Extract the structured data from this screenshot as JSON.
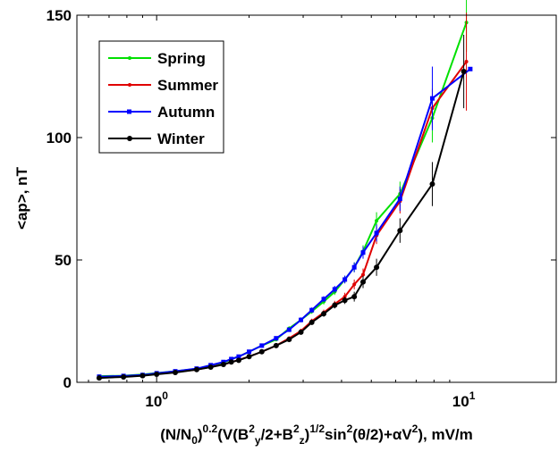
{
  "chart_data": {
    "type": "line",
    "xscale": "log",
    "xlim": [
      0.55,
      20
    ],
    "ylim": [
      0,
      150
    ],
    "x_ticks": [
      1,
      10
    ],
    "x_tick_labels": [
      {
        "base": "10",
        "exp": "0"
      },
      {
        "base": "10",
        "exp": "1"
      }
    ],
    "y_ticks": [
      0,
      50,
      100,
      150
    ],
    "y_tick_labels": [
      "0",
      "50",
      "100",
      "150"
    ],
    "ylabel": "<ap>, nT",
    "xlabel_parts": [
      {
        "t": "(N/N",
        "s": "n"
      },
      {
        "t": "0",
        "s": "sub"
      },
      {
        "t": ")",
        "s": "n"
      },
      {
        "t": "0.2",
        "s": "sup"
      },
      {
        "t": "(V(B",
        "s": "n"
      },
      {
        "t": "2",
        "s": "sup"
      },
      {
        "t": "y",
        "s": "sub"
      },
      {
        "t": "/2+B",
        "s": "n"
      },
      {
        "t": "2",
        "s": "sup"
      },
      {
        "t": "z",
        "s": "sub"
      },
      {
        "t": ")",
        "s": "n"
      },
      {
        "t": "1/2",
        "s": "sup"
      },
      {
        "t": "sin",
        "s": "n"
      },
      {
        "t": "2",
        "s": "sup"
      },
      {
        "t": "(θ/2)+αV",
        "s": "n"
      },
      {
        "t": "2",
        "s": "sup"
      },
      {
        "t": "), mV/m",
        "s": "n"
      }
    ],
    "grid": false,
    "legend_position": "top-left",
    "series": [
      {
        "name": "Spring",
        "color": "#00e000",
        "marker": "dot",
        "x": [
          0.65,
          0.78,
          0.9,
          1.0,
          1.15,
          1.35,
          1.5,
          1.65,
          1.75,
          1.85,
          2.0,
          2.2,
          2.45,
          2.7,
          2.95,
          3.2,
          3.5,
          3.8,
          4.1,
          4.4,
          4.7,
          5.2,
          6.2,
          7.9,
          10.2
        ],
        "y": [
          2.5,
          2.7,
          3.2,
          3.8,
          4.5,
          5.5,
          7.0,
          8.0,
          9.5,
          10.5,
          12.5,
          15.0,
          17.5,
          22.0,
          25.5,
          29.0,
          33.0,
          37.0,
          42.0,
          47.0,
          53.5,
          66.0,
          77.0,
          108.0,
          147.0
        ],
        "err": [
          0.3,
          0.3,
          0.3,
          0.4,
          0.4,
          0.5,
          0.5,
          0.5,
          0.5,
          0.6,
          0.6,
          0.7,
          0.8,
          0.9,
          1.0,
          1.0,
          1.2,
          1.3,
          1.5,
          2.0,
          2.5,
          3.5,
          5.0,
          10.0,
          12.0
        ]
      },
      {
        "name": "Summer",
        "color": "#e00000",
        "marker": "dot",
        "x": [
          0.65,
          0.78,
          0.9,
          1.0,
          1.15,
          1.35,
          1.5,
          1.65,
          1.75,
          1.85,
          2.0,
          2.2,
          2.45,
          2.7,
          2.95,
          3.2,
          3.5,
          3.8,
          4.1,
          4.4,
          4.7,
          5.2,
          6.2,
          7.9,
          10.2
        ],
        "y": [
          2.0,
          2.3,
          2.8,
          3.5,
          4.2,
          5.2,
          6.3,
          7.3,
          8.2,
          9.2,
          10.5,
          12.5,
          15.0,
          18.0,
          21.0,
          25.0,
          28.5,
          32.0,
          35.0,
          40.0,
          44.0,
          60.0,
          74.0,
          112.0,
          131.0
        ],
        "err": [
          0.3,
          0.3,
          0.3,
          0.3,
          0.4,
          0.4,
          0.4,
          0.5,
          0.5,
          0.5,
          0.6,
          0.6,
          0.7,
          0.8,
          0.9,
          1.0,
          1.2,
          1.3,
          1.6,
          2.0,
          2.5,
          3.5,
          5.0,
          8.0,
          20.0
        ]
      },
      {
        "name": "Autumn",
        "color": "#0000ff",
        "marker": "square",
        "x": [
          0.65,
          0.78,
          0.9,
          1.0,
          1.15,
          1.35,
          1.5,
          1.65,
          1.75,
          1.85,
          2.0,
          2.2,
          2.45,
          2.7,
          2.95,
          3.2,
          3.5,
          3.8,
          4.1,
          4.4,
          4.7,
          5.2,
          6.2,
          7.9,
          10.5
        ],
        "y": [
          2.3,
          2.6,
          3.0,
          3.7,
          4.5,
          5.6,
          7.0,
          8.3,
          9.5,
          10.5,
          12.5,
          15.0,
          18.0,
          21.5,
          25.5,
          29.5,
          34.0,
          38.0,
          42.0,
          47.0,
          53.0,
          61.0,
          75.0,
          116.0,
          128.0
        ],
        "err": [
          0.3,
          0.3,
          0.3,
          0.4,
          0.4,
          0.5,
          0.5,
          0.5,
          0.6,
          0.6,
          0.6,
          0.7,
          0.8,
          0.9,
          1.0,
          1.1,
          1.2,
          1.4,
          1.6,
          2.0,
          2.5,
          3.5,
          5.0,
          13.0,
          0.0
        ]
      },
      {
        "name": "Winter",
        "color": "#000000",
        "marker": "dot",
        "x": [
          0.65,
          0.78,
          0.9,
          1.0,
          1.15,
          1.35,
          1.5,
          1.65,
          1.75,
          1.85,
          2.0,
          2.2,
          2.45,
          2.7,
          2.95,
          3.2,
          3.5,
          3.8,
          4.1,
          4.4,
          4.7,
          5.2,
          6.2,
          7.9,
          10.0
        ],
        "y": [
          1.8,
          2.2,
          2.7,
          3.3,
          4.0,
          5.2,
          6.2,
          7.3,
          8.3,
          9.0,
          10.5,
          12.5,
          15.0,
          17.5,
          20.5,
          24.5,
          28.0,
          31.5,
          33.5,
          35.0,
          41.0,
          47.0,
          62.0,
          81.0,
          127.0
        ],
        "err": [
          0.3,
          0.3,
          0.3,
          0.3,
          0.4,
          0.4,
          0.4,
          0.5,
          0.5,
          0.5,
          0.6,
          0.6,
          0.7,
          0.8,
          0.9,
          1.0,
          1.2,
          1.3,
          1.5,
          2.0,
          2.5,
          3.5,
          5.0,
          9.0,
          15.0
        ]
      }
    ]
  }
}
